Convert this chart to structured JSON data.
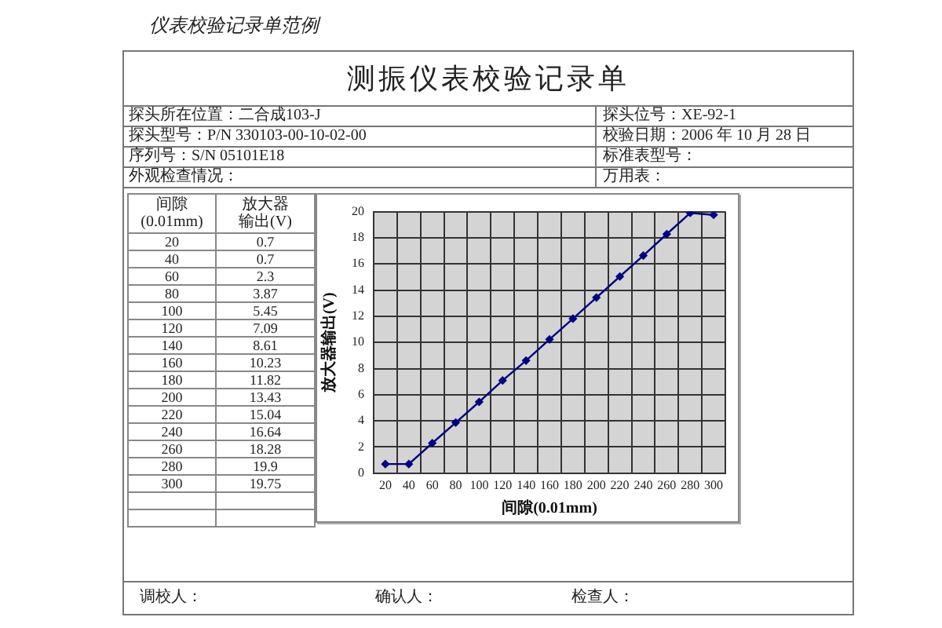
{
  "chart_data": {
    "type": "line",
    "title": "仪表校验记录单范例",
    "subtitle": "测振仪表校验记录单",
    "xlabel": "间隙(0.01mm)",
    "ylabel": "放大器输出(V)",
    "categories": [
      "20",
      "40",
      "60",
      "80",
      "100",
      "120",
      "140",
      "160",
      "180",
      "200",
      "220",
      "240",
      "260",
      "280",
      "300"
    ],
    "series": [
      {
        "color": "#000080",
        "values": [
          0.7,
          0.7,
          2.3,
          3.87,
          5.45,
          7.09,
          8.61,
          10.23,
          11.82,
          13.43,
          15.04,
          16.64,
          18.28,
          19.9,
          19.75
        ]
      }
    ],
    "ylim": [
      0,
      20
    ],
    "yticks": [
      0,
      2,
      4,
      6,
      8,
      10,
      12,
      14,
      16,
      18,
      20
    ],
    "grid": true,
    "legend": false,
    "marker": "diamond",
    "line_style": "solid",
    "annotations": [
      "探头所在位置：二合成103-J",
      "探头位号：XE-92-1",
      "探头型号：P/N 330103-00-10-02-00",
      "校验日期：2006 年 10 月 28 日",
      "序列号：S/N 05101E18",
      "标准表型号：",
      "外观检查情况：",
      "万用表：",
      "0.7",
      "0.7",
      "2.3",
      "3.87",
      "5.45",
      "7.09",
      "8.61",
      "10.23",
      "11.82",
      "13.43",
      "15.04",
      "16.64",
      "18.28",
      "19.9",
      "19.75",
      "调校人：",
      "确认人：",
      "检查人："
    ]
  }
}
